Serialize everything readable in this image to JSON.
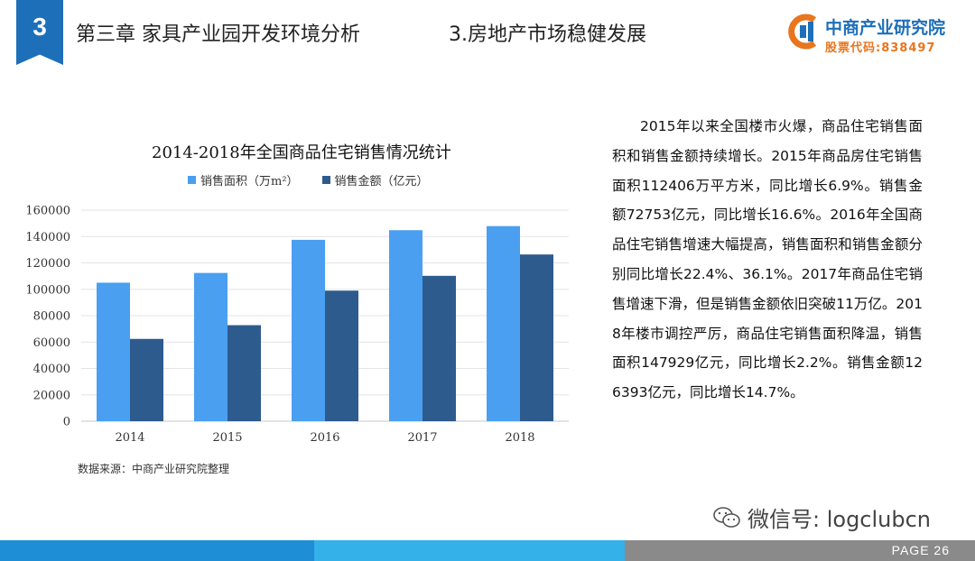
{
  "header": {
    "chapter_number": "3",
    "chapter_title": "第三章 家具产业园开发环境分析",
    "section_title": "3.房地产市场稳健发展",
    "logo_name": "中商产业研究院",
    "logo_code": "股票代码:838497"
  },
  "chart_data": {
    "type": "bar",
    "title": "2014-2018年全国商品住宅销售情况统计",
    "categories": [
      "2014",
      "2015",
      "2016",
      "2017",
      "2018"
    ],
    "series": [
      {
        "name": "销售面积（万m²）",
        "color": "#4a9ff0",
        "values": [
          105000,
          112400,
          137500,
          144800,
          147900
        ]
      },
      {
        "name": "销售金额（亿元）",
        "color": "#2e5b8e",
        "values": [
          62400,
          72800,
          99000,
          110200,
          126400
        ]
      }
    ],
    "y_ticks": [
      "0",
      "20000",
      "40000",
      "60000",
      "80000",
      "100000",
      "120000",
      "140000",
      "160000"
    ],
    "ylim": [
      0,
      160000
    ],
    "grid": true,
    "legend_position": "top",
    "source": "数据来源：中商产业研究院整理"
  },
  "body_text": "2015年以来全国楼市火爆，商品住宅销售面积和销售金额持续增长。2015年商品房住宅销售面积112406万平方米，同比增长6.9%。销售金额72753亿元，同比增长16.6%。2016年全国商品住宅销售增速大幅提高，销售面积和销售金额分别同比增长22.4%、36.1%。2017年商品住宅销售增速下滑，但是销售金额依旧突破11万亿。2018年楼市调控严厉，商品住宅销售面积降温，销售面积147929亿元，同比增长2.2%。销售金额126393亿元，同比增长14.7%。",
  "footer": {
    "wechat_text": "微信号: logclubcn",
    "page_label": "PAGE  26",
    "colors": {
      "left": "#1e8fd6",
      "middle": "#35b1ea",
      "right": "#8a8a8a"
    }
  }
}
